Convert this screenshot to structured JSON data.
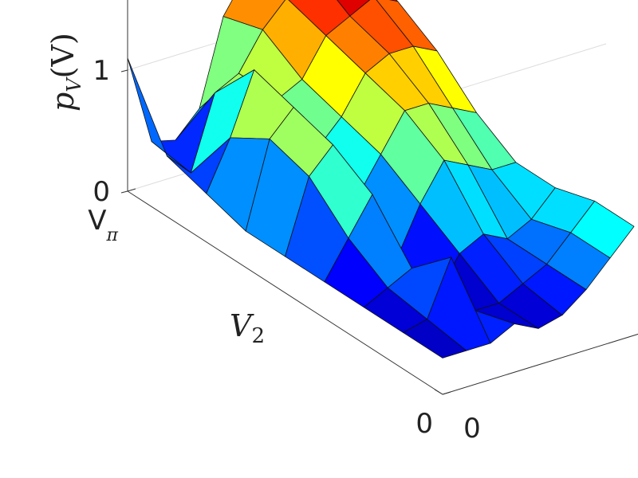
{
  "chart_data": {
    "type": "surface",
    "zlabel": "pV(V)",
    "xlabel": "V2",
    "x": [
      1,
      0.875,
      0.75,
      0.625,
      0.5,
      0.375,
      0.25,
      0.125,
      0
    ],
    "y": [
      0,
      0.1,
      0.2,
      0.3,
      0.4,
      0.5,
      0.6,
      0.7,
      0.8
    ],
    "z": [
      [
        1.1,
        0.35,
        0.3,
        0.5,
        1.2,
        1.5,
        1.7,
        1.8,
        1.7
      ],
      [
        0.5,
        0.3,
        0.9,
        1.0,
        1.3,
        1.5,
        1.7,
        1.8,
        1.6
      ],
      [
        0.4,
        0.8,
        1.3,
        1.0,
        1.1,
        1.4,
        1.5,
        1.6,
        1.5
      ],
      [
        0.3,
        1.0,
        1.2,
        0.8,
        1.0,
        1.3,
        1.4,
        1.4,
        1.3
      ],
      [
        0.3,
        0.9,
        1.1,
        0.6,
        0.9,
        1.2,
        1.2,
        1.1,
        1.0
      ],
      [
        0.3,
        0.6,
        0.9,
        0.3,
        0.7,
        1.0,
        0.9,
        0.8,
        0.8
      ],
      [
        0.3,
        0.4,
        0.5,
        0.2,
        0.5,
        0.6,
        0.5,
        0.6,
        0.8
      ],
      [
        0.3,
        0.35,
        0.8,
        0.3,
        0.3,
        0.4,
        0.5,
        0.7,
        0.9
      ],
      [
        0.3,
        0.3,
        0.3,
        0.4,
        0.3,
        0.35,
        0.5,
        0.7,
        0.9
      ]
    ],
    "colormap": "jet",
    "clim": [
      0.2,
      1.8
    ],
    "xlim": [
      0,
      1
    ],
    "xticks": [
      {
        "value": 1,
        "label": "Vπ"
      },
      0
    ],
    "ylim": [
      0,
      2
    ],
    "yticks": [
      0
    ],
    "zlim": [
      0,
      1.6
    ],
    "zticks": [
      0,
      1
    ],
    "grid": true
  }
}
